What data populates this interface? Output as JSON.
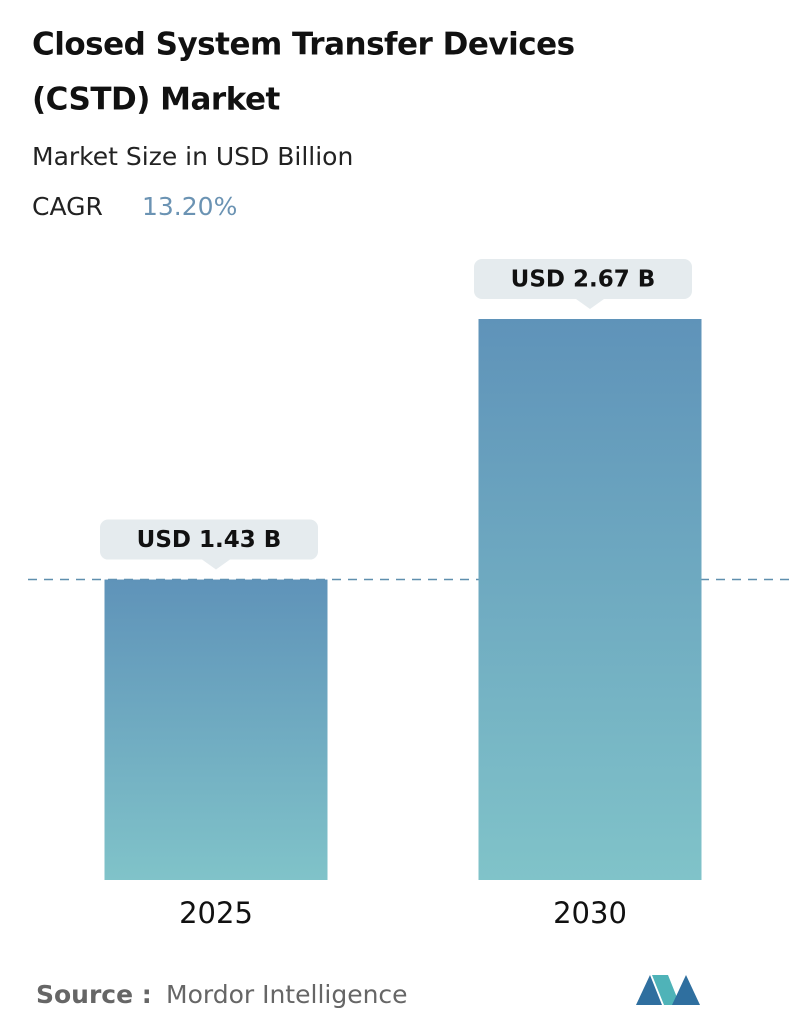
{
  "chart_data": {
    "type": "bar",
    "title_lines": [
      "Closed System Transfer Devices",
      "(CSTD) Market"
    ],
    "subtitle": "Market Size in USD Billion",
    "cagr_label": "CAGR",
    "cagr_value": "13.20%",
    "categories": [
      "2025",
      "2030"
    ],
    "values": [
      1.43,
      2.67
    ],
    "value_labels": [
      "USD 1.43 B",
      "USD 2.67 B"
    ],
    "color_top": "#5f93b9",
    "color_bottom": "#80c3c9",
    "source_label": "Source :",
    "source": "Mordor Intelligence"
  }
}
